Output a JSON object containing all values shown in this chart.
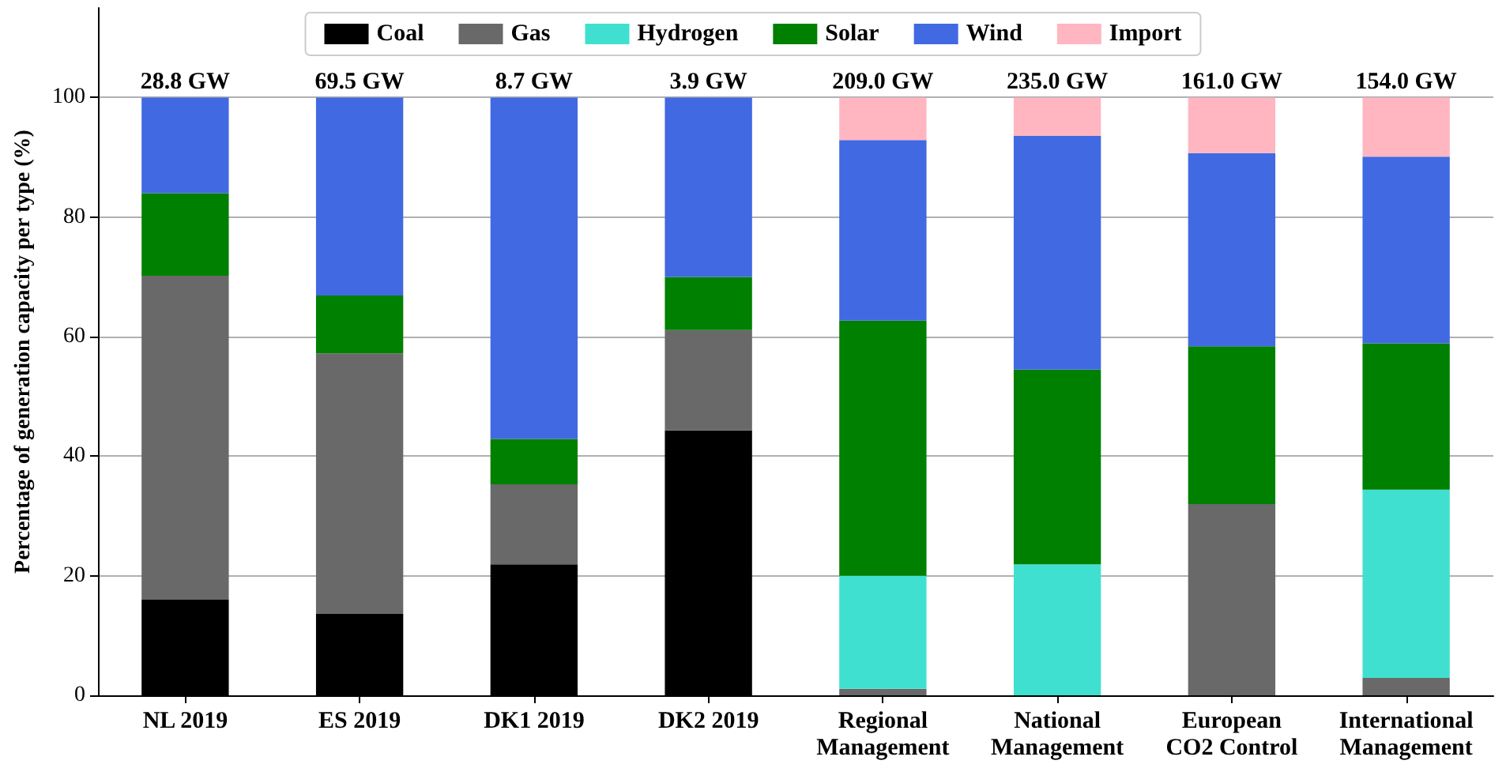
{
  "chart_data": {
    "type": "bar",
    "stacked": true,
    "ylabel": "Percentage of generation capacity per type (%)",
    "categories": [
      "NL 2019",
      "ES 2019",
      "DK1 2019",
      "DK2 2019",
      "Regional\nManagement",
      "National\nManagement",
      "European\nCO2 Control",
      "International\nManagement"
    ],
    "series": [
      {
        "name": "Coal",
        "color": "#000000",
        "values": [
          16.0,
          13.6,
          21.9,
          44.3,
          0,
          0,
          0,
          0
        ]
      },
      {
        "name": "Gas",
        "color": "#696969",
        "values": [
          54.2,
          43.6,
          13.4,
          16.8,
          1.1,
          0,
          32.0,
          2.9
        ]
      },
      {
        "name": "Hydrogen",
        "color": "#40e0d0",
        "values": [
          0,
          0,
          0,
          0,
          18.9,
          21.9,
          0,
          31.5
        ]
      },
      {
        "name": "Solar",
        "color": "#008000",
        "values": [
          13.8,
          9.7,
          7.6,
          8.9,
          42.7,
          32.6,
          26.4,
          24.5
        ]
      },
      {
        "name": "Wind",
        "color": "#4169e1",
        "values": [
          16.0,
          33.1,
          57.1,
          30.0,
          30.2,
          39.1,
          32.3,
          31.2
        ]
      },
      {
        "name": "Import",
        "color": "#ffb6c1",
        "values": [
          0,
          0,
          0,
          0,
          7.1,
          6.4,
          9.3,
          9.9
        ]
      }
    ],
    "annotations": [
      {
        "text": "28.8 GW",
        "x": "NL 2019",
        "y": 100
      },
      {
        "text": "69.5 GW",
        "x": "ES 2019",
        "y": 100
      },
      {
        "text": "8.7 GW",
        "x": "DK1 2019",
        "y": 100
      },
      {
        "text": "3.9 GW",
        "x": "DK2 2019",
        "y": 100
      },
      {
        "text": "209.0 GW",
        "x": "Regional\nManagement",
        "y": 100
      },
      {
        "text": "235.0 GW",
        "x": "National\nManagement",
        "y": 100
      },
      {
        "text": "161.0 GW",
        "x": "European\nCO2 Control",
        "y": 100
      },
      {
        "text": "154.0 GW",
        "x": "International\nManagement",
        "y": 100
      }
    ],
    "ylim": [
      0,
      115
    ],
    "yticks": [
      0,
      20,
      40,
      60,
      80,
      100
    ],
    "grid": "y",
    "legend": "top"
  }
}
